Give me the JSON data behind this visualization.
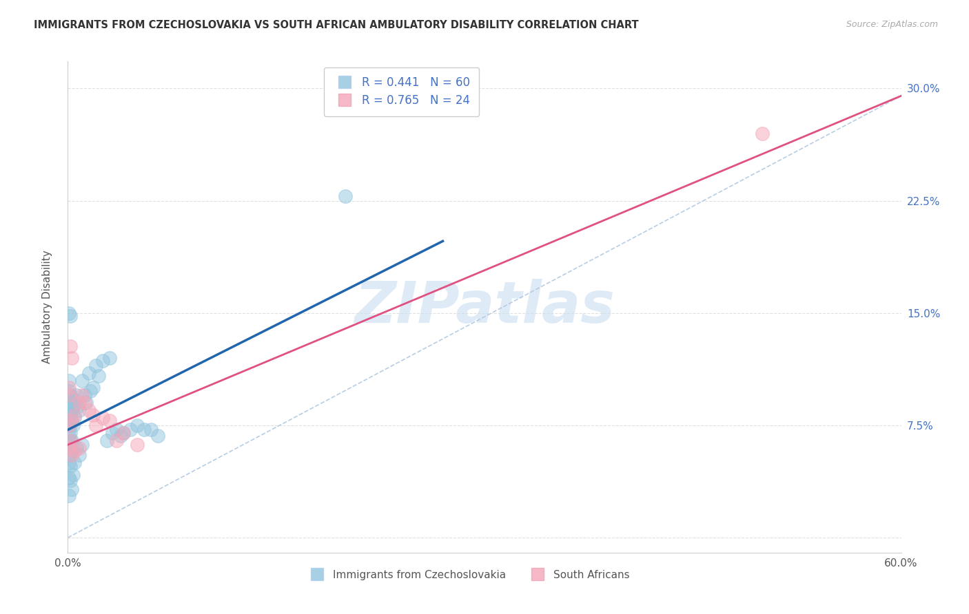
{
  "title": "IMMIGRANTS FROM CZECHOSLOVAKIA VS SOUTH AFRICAN AMBULATORY DISABILITY CORRELATION CHART",
  "source": "Source: ZipAtlas.com",
  "ylabel": "Ambulatory Disability",
  "xmin": 0.0,
  "xmax": 0.6,
  "ymin": -0.01,
  "ymax": 0.318,
  "watermark": "ZIPatlas",
  "blue_r": "0.441",
  "blue_n": "60",
  "pink_r": "0.765",
  "pink_n": "24",
  "blue_fill": "#92c5de",
  "pink_fill": "#f4a7b9",
  "blue_line_color": "#2166ac",
  "pink_line_color": "#e05080",
  "ref_line_color": "#b0c8e0",
  "grid_color": "#e0e0e0",
  "background_color": "#ffffff",
  "blue_points_x": [
    0.001,
    0.001,
    0.001,
    0.001,
    0.001,
    0.001,
    0.001,
    0.001,
    0.001,
    0.001,
    0.002,
    0.002,
    0.002,
    0.002,
    0.002,
    0.002,
    0.002,
    0.003,
    0.003,
    0.003,
    0.003,
    0.003,
    0.004,
    0.004,
    0.004,
    0.005,
    0.005,
    0.005,
    0.006,
    0.006,
    0.007,
    0.008,
    0.008,
    0.01,
    0.01,
    0.012,
    0.013,
    0.015,
    0.016,
    0.018,
    0.02,
    0.022,
    0.025,
    0.028,
    0.03,
    0.032,
    0.035,
    0.038,
    0.04,
    0.045,
    0.05,
    0.055,
    0.06,
    0.065,
    0.001,
    0.002,
    0.003,
    0.2,
    0.001
  ],
  "blue_points_y": [
    0.075,
    0.08,
    0.09,
    0.068,
    0.06,
    0.098,
    0.105,
    0.055,
    0.05,
    0.04,
    0.075,
    0.082,
    0.07,
    0.065,
    0.095,
    0.048,
    0.038,
    0.085,
    0.09,
    0.078,
    0.065,
    0.058,
    0.088,
    0.075,
    0.042,
    0.092,
    0.08,
    0.05,
    0.095,
    0.06,
    0.088,
    0.085,
    0.055,
    0.105,
    0.062,
    0.095,
    0.09,
    0.11,
    0.098,
    0.1,
    0.115,
    0.108,
    0.118,
    0.065,
    0.12,
    0.07,
    0.072,
    0.068,
    0.07,
    0.072,
    0.075,
    0.072,
    0.072,
    0.068,
    0.15,
    0.148,
    0.032,
    0.228,
    0.028
  ],
  "pink_points_x": [
    0.001,
    0.001,
    0.001,
    0.001,
    0.002,
    0.002,
    0.003,
    0.003,
    0.003,
    0.005,
    0.005,
    0.008,
    0.008,
    0.01,
    0.012,
    0.015,
    0.018,
    0.02,
    0.025,
    0.03,
    0.035,
    0.04,
    0.05,
    0.5
  ],
  "pink_points_y": [
    0.095,
    0.1,
    0.075,
    0.06,
    0.128,
    0.065,
    0.12,
    0.078,
    0.055,
    0.082,
    0.058,
    0.09,
    0.06,
    0.095,
    0.09,
    0.085,
    0.082,
    0.075,
    0.08,
    0.078,
    0.065,
    0.07,
    0.062,
    0.27
  ],
  "blue_line_x0": 0.0,
  "blue_line_x1": 0.27,
  "blue_line_y0": 0.072,
  "blue_line_y1": 0.198,
  "pink_line_x0": 0.0,
  "pink_line_x1": 0.6,
  "pink_line_y0": 0.062,
  "pink_line_y1": 0.295,
  "ref_line_x0": 0.0,
  "ref_line_x1": 0.6,
  "ref_line_y0": 0.0,
  "ref_line_y1": 0.295,
  "ytick_vals": [
    0.0,
    0.075,
    0.15,
    0.225,
    0.3
  ],
  "ytick_labels_right": [
    "",
    "7.5%",
    "15.0%",
    "22.5%",
    "30.0%"
  ],
  "xtick_vals": [
    0.0,
    0.1,
    0.2,
    0.3,
    0.4,
    0.5,
    0.6
  ],
  "xtick_labels": [
    "0.0%",
    "",
    "",
    "",
    "",
    "",
    "60.0%"
  ]
}
